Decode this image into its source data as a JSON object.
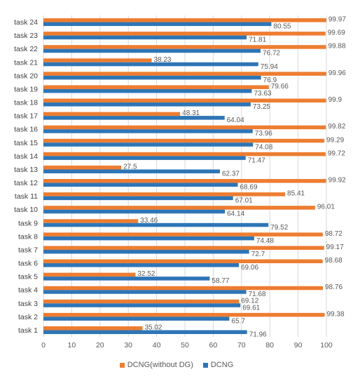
{
  "chart_data": {
    "type": "bar",
    "orientation": "horizontal",
    "categories": [
      "task 1",
      "task 2",
      "task 3",
      "task 4",
      "task 5",
      "task 6",
      "task 7",
      "task 8",
      "task 9",
      "task 10",
      "task 11",
      "task 12",
      "task 13",
      "task 14",
      "task 15",
      "task 16",
      "task 17",
      "task 18",
      "task 19",
      "task 20",
      "task 21",
      "task 22",
      "task 23",
      "task 24"
    ],
    "series": [
      {
        "name": "DCNG(without DG)",
        "color": "#ED7D31",
        "values": [
          35.02,
          99.38,
          69.12,
          98.76,
          32.52,
          98.68,
          99.17,
          98.72,
          33.46,
          96.01,
          85.41,
          99.92,
          27.5,
          99.72,
          99.29,
          99.82,
          48.31,
          99.9,
          79.66,
          99.96,
          38.23,
          99.88,
          99.69,
          99.97
        ]
      },
      {
        "name": "DCNG",
        "color": "#2E75B6",
        "values": [
          71.96,
          65.7,
          69.61,
          71.68,
          58.77,
          69.06,
          72.7,
          74.48,
          79.52,
          64.14,
          67.01,
          68.69,
          62.37,
          71.47,
          74.08,
          73.96,
          64.04,
          73.25,
          73.63,
          76.9,
          75.94,
          76.72,
          71.81,
          80.55
        ]
      }
    ],
    "xlim": [
      0,
      100
    ],
    "xticks": [
      "0",
      "10",
      "20",
      "30",
      "40",
      "50",
      "60",
      "70",
      "80",
      "90",
      "100"
    ],
    "grid": true,
    "legend_position": "bottom",
    "title": "",
    "xlabel": "",
    "ylabel": ""
  }
}
